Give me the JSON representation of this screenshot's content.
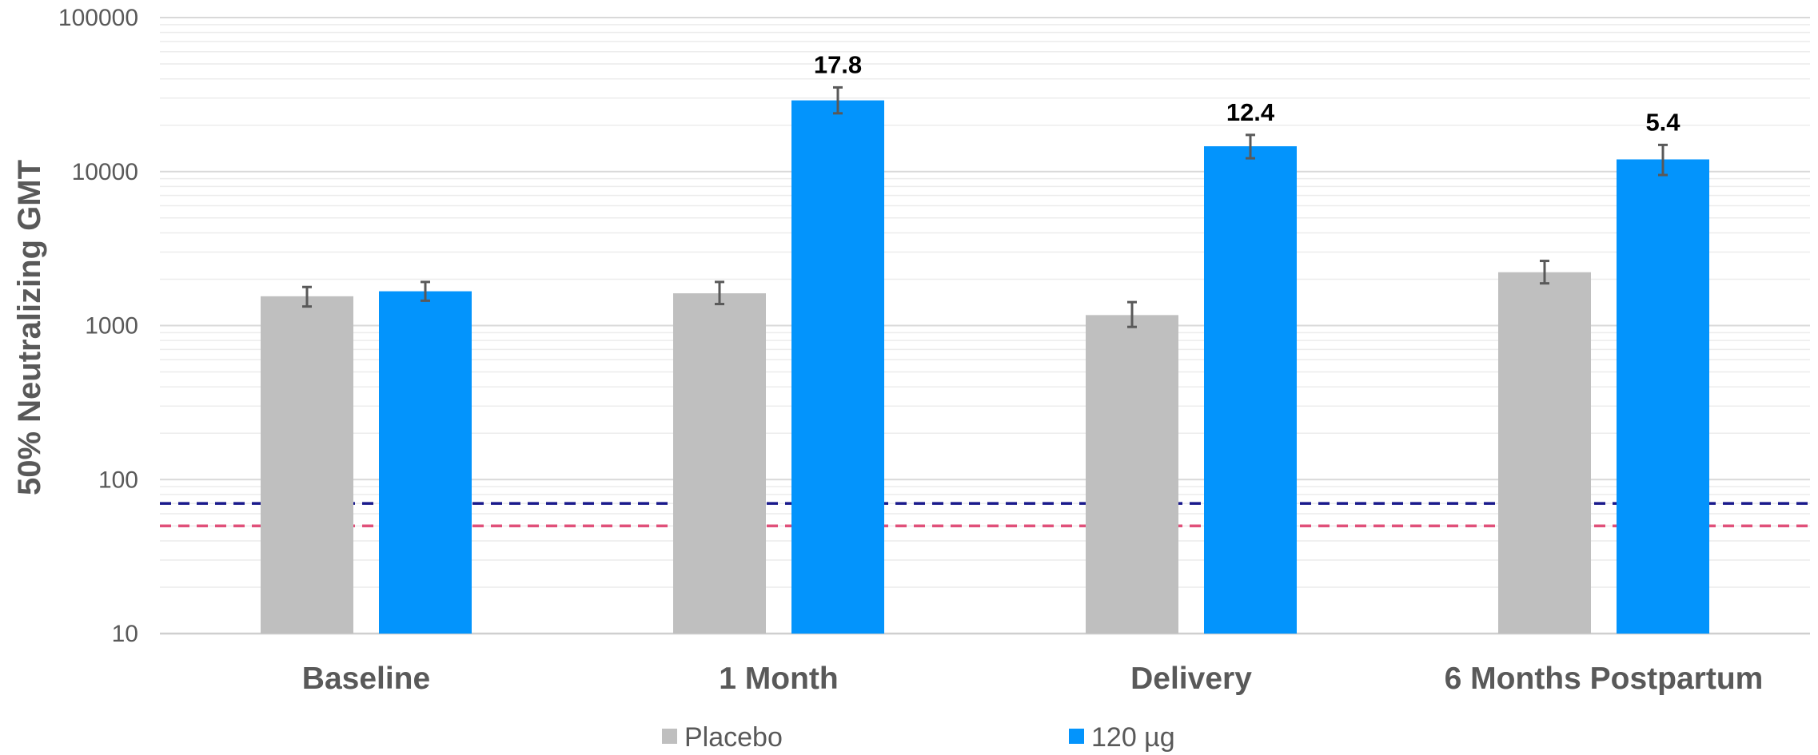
{
  "chart_data": {
    "type": "bar",
    "title": "",
    "xlabel": "",
    "ylabel": "50% Neutralizing GMT",
    "yscale": "log",
    "ylim": [
      10,
      100000
    ],
    "yticks": [
      10,
      100,
      1000,
      10000,
      100000
    ],
    "ytick_labels": [
      "10",
      "100",
      "1000",
      "10000",
      "100000"
    ],
    "grid": true,
    "legend_position": "bottom",
    "categories": [
      "Baseline",
      "1 Month",
      "Delivery",
      "6 Months Postpartum"
    ],
    "series": [
      {
        "name": "Placebo",
        "color": "#bfbfbf",
        "values": [
          1550,
          1620,
          1170,
          2220
        ],
        "err_low": [
          1330,
          1380,
          980,
          1880
        ],
        "err_high": [
          1780,
          1920,
          1420,
          2630
        ]
      },
      {
        "name": "120 µg",
        "color": "#0394fc",
        "values": [
          1670,
          29000,
          14600,
          12000
        ],
        "err_low": [
          1450,
          23900,
          12200,
          9500
        ],
        "err_high": [
          1920,
          35200,
          17300,
          14900
        ]
      }
    ],
    "annotations": [
      {
        "category": "1 Month",
        "series": "120 µg",
        "text": "17.8"
      },
      {
        "category": "Delivery",
        "series": "120 µg",
        "text": "12.4"
      },
      {
        "category": "6 Months Postpartum",
        "series": "120 µg",
        "text": "5.4"
      }
    ],
    "reference_lines": [
      {
        "y": 70,
        "color": "#1a1a8c",
        "style": "dashed"
      },
      {
        "y": 50,
        "color": "#e0507a",
        "style": "dashed"
      }
    ]
  }
}
